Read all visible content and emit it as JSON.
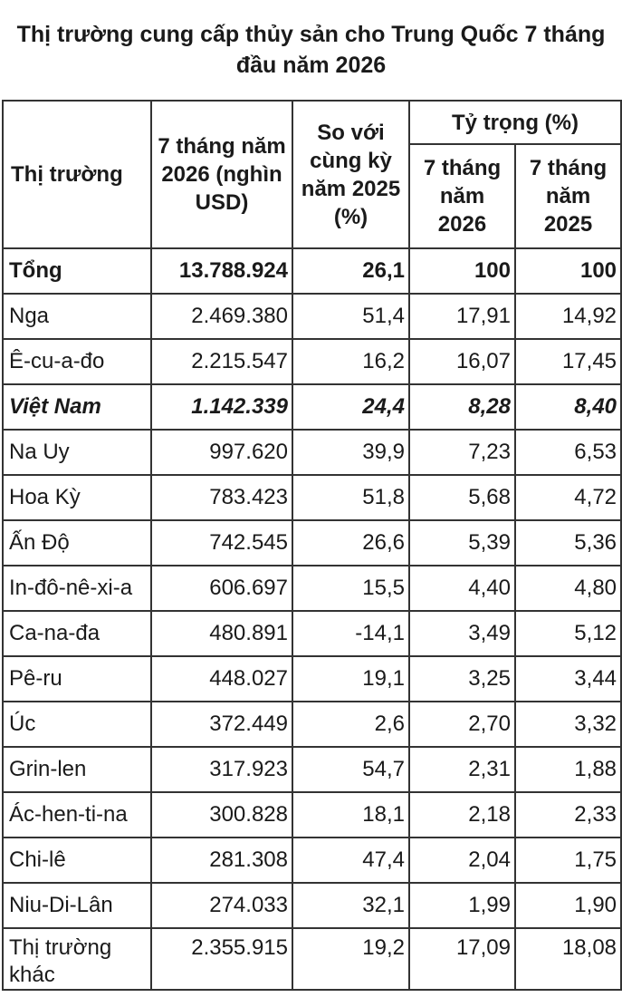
{
  "title": "Thị trường cung cấp thủy sản cho Trung Quốc 7 tháng đầu năm 2026",
  "headers": {
    "market": "Thị trường",
    "value": "7 tháng năm 2026 (nghìn USD)",
    "change": "So với cùng kỳ năm 2025 (%)",
    "share": "Tỷ trọng (%)",
    "share_2026": "7 tháng năm 2026",
    "share_2025": "7 tháng năm 2025"
  },
  "rows": [
    {
      "market": "Tổng",
      "value": "13.788.924",
      "change": "26,1",
      "share_2026": "100",
      "share_2025": "100"
    },
    {
      "market": "Nga",
      "value": "2.469.380",
      "change": "51,4",
      "share_2026": "17,91",
      "share_2025": "14,92"
    },
    {
      "market": "Ê-cu-a-đo",
      "value": "2.215.547",
      "change": "16,2",
      "share_2026": "16,07",
      "share_2025": "17,45"
    },
    {
      "market": "Việt Nam",
      "value": "1.142.339",
      "change": "24,4",
      "share_2026": "8,28",
      "share_2025": "8,40"
    },
    {
      "market": "Na Uy",
      "value": "997.620",
      "change": "39,9",
      "share_2026": "7,23",
      "share_2025": "6,53"
    },
    {
      "market": "Hoa Kỳ",
      "value": "783.423",
      "change": "51,8",
      "share_2026": "5,68",
      "share_2025": "4,72"
    },
    {
      "market": "Ấn Độ",
      "value": "742.545",
      "change": "26,6",
      "share_2026": "5,39",
      "share_2025": "5,36"
    },
    {
      "market": "In-đô-nê-xi-a",
      "value": "606.697",
      "change": "15,5",
      "share_2026": "4,40",
      "share_2025": "4,80"
    },
    {
      "market": "Ca-na-đa",
      "value": "480.891",
      "change": "-14,1",
      "share_2026": "3,49",
      "share_2025": "5,12"
    },
    {
      "market": "Pê-ru",
      "value": "448.027",
      "change": "19,1",
      "share_2026": "3,25",
      "share_2025": "3,44"
    },
    {
      "market": "Úc",
      "value": "372.449",
      "change": "2,6",
      "share_2026": "2,70",
      "share_2025": "3,32"
    },
    {
      "market": "Grin-len",
      "value": "317.923",
      "change": "54,7",
      "share_2026": "2,31",
      "share_2025": "1,88"
    },
    {
      "market": "Ác-hen-ti-na",
      "value": "300.828",
      "change": "18,1",
      "share_2026": "2,18",
      "share_2025": "2,33"
    },
    {
      "market": "Chi-lê",
      "value": "281.308",
      "change": "47,4",
      "share_2026": "2,04",
      "share_2025": "1,75"
    },
    {
      "market": "Niu-Di-Lân",
      "value": "274.033",
      "change": "32,1",
      "share_2026": "1,99",
      "share_2025": "1,90"
    },
    {
      "market": "Thị trường khác",
      "value": "2.355.915",
      "change": "19,2",
      "share_2026": "17,09",
      "share_2025": "18,08"
    }
  ]
}
